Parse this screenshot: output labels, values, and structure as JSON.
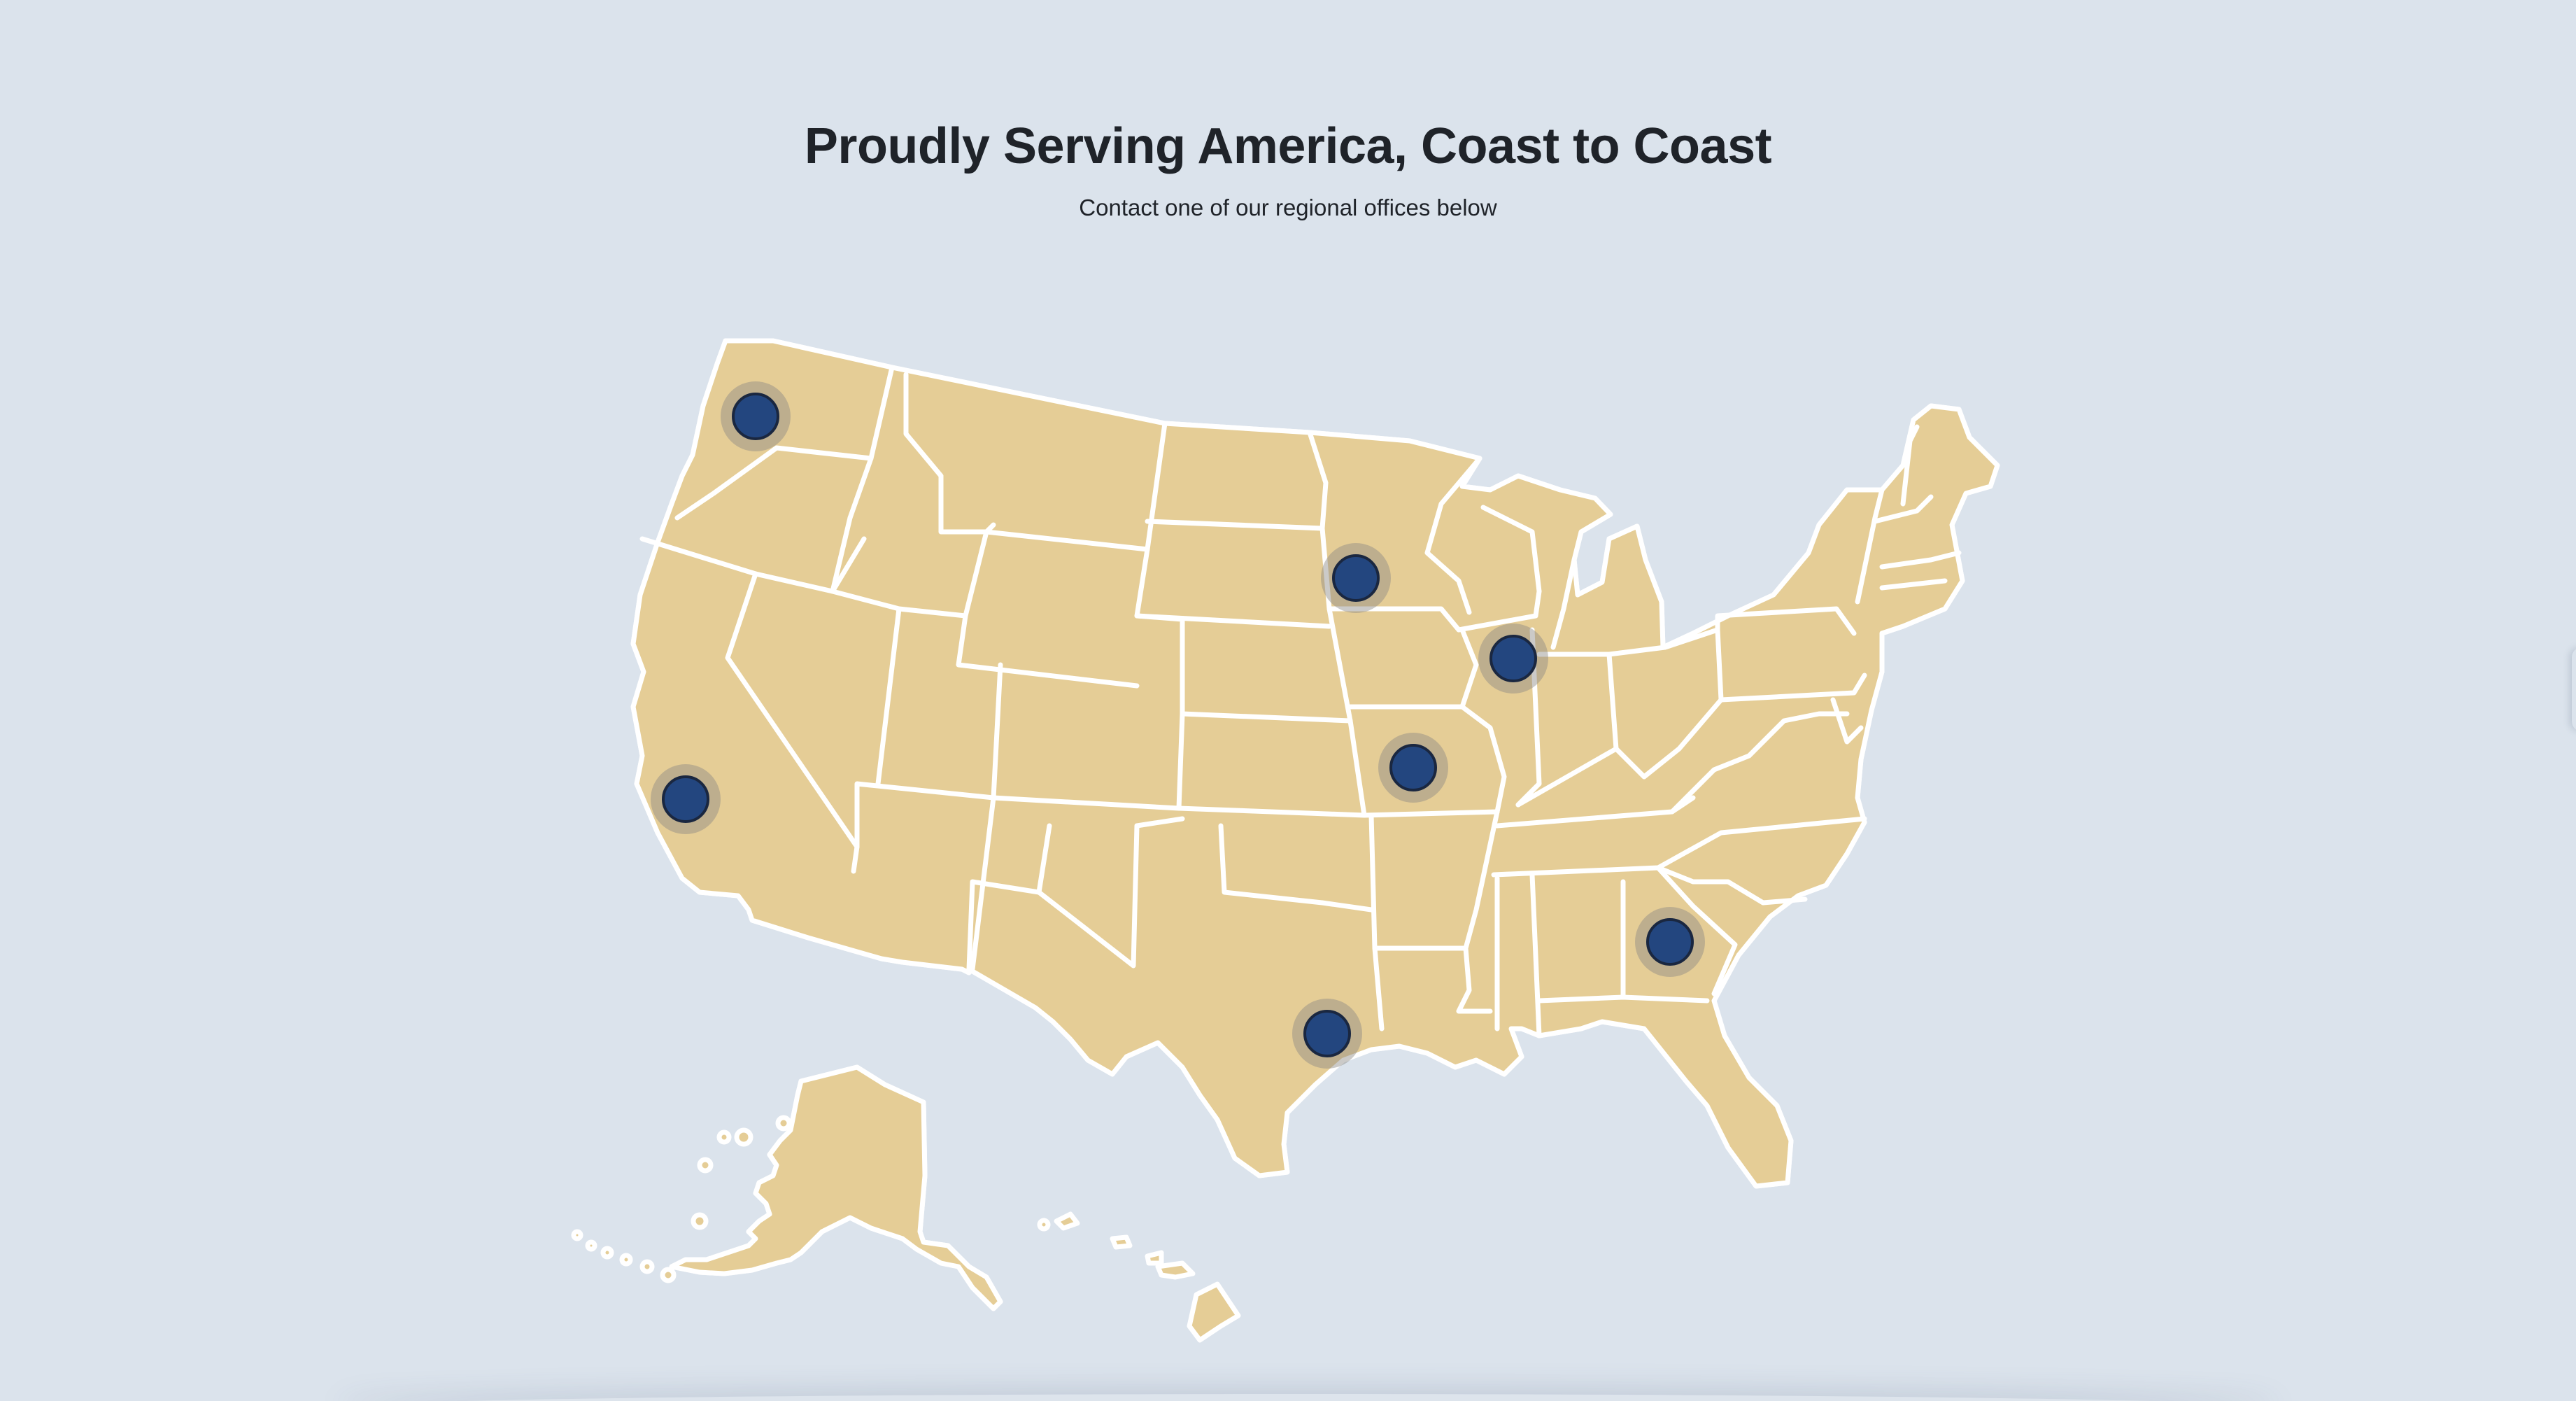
{
  "header": {
    "title": "Proudly Serving America, Coast to Coast",
    "subtitle": "Contact one of our regional offices below"
  },
  "colors": {
    "background": "#dbe3ec",
    "state_fill": "#e5cd96",
    "coverage_fill": "#f2b737",
    "state_border": "#ffffff",
    "marker_fill": "#23467f",
    "marker_stroke": "#1a2740",
    "marker_halo": "#8c8a84",
    "title_text": "#1f2329"
  },
  "map": {
    "region": "United States (contiguous states, Alaska, Hawaii)",
    "offices": [
      {
        "id": "seattle",
        "location": "Seattle, WA",
        "lat": 47.6,
        "lon": -122.3
      },
      {
        "id": "los-angeles",
        "location": "Los Angeles, CA",
        "lat": 34.05,
        "lon": -118.24
      },
      {
        "id": "minneapolis",
        "location": "Minneapolis, MN",
        "lat": 44.98,
        "lon": -93.27
      },
      {
        "id": "chicago",
        "location": "Chicago, IL",
        "lat": 41.88,
        "lon": -87.63
      },
      {
        "id": "kansas-city",
        "location": "Kansas City, MO",
        "lat": 39.1,
        "lon": -94.58
      },
      {
        "id": "houston",
        "location": "Houston, TX",
        "lat": 29.76,
        "lon": -95.37
      },
      {
        "id": "atlanta",
        "location": "Atlanta, GA",
        "lat": 33.75,
        "lon": -84.39
      }
    ]
  }
}
